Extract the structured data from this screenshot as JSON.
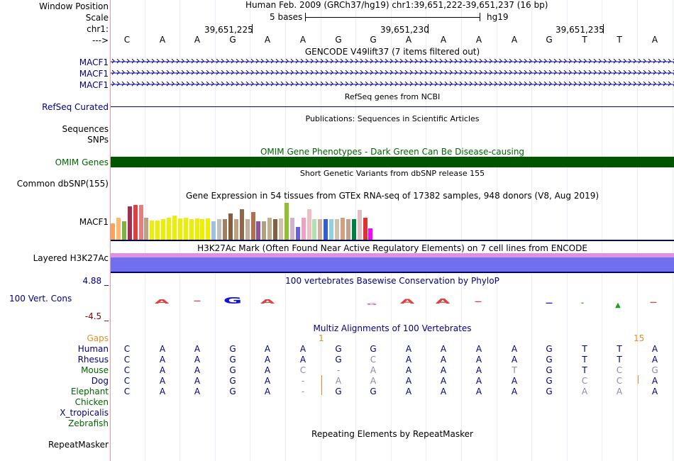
{
  "header": {
    "window_position_label": "Window Position",
    "scale_label": "Scale",
    "chr_label": "chr1:",
    "arrow_label": "--->",
    "position_text": "Human Feb. 2009 (GRCh37/hg19)   chr1:39,651,222-39,651,237 (16 bp)",
    "scale_text": "5 bases",
    "assembly": "hg19",
    "ticks": [
      "39,651,225",
      "39,651,230",
      "39,651,235"
    ]
  },
  "reference_bases": [
    "C",
    "A",
    "A",
    "G",
    "A",
    "A",
    "G",
    "G",
    "A",
    "A",
    "A",
    "A",
    "G",
    "T",
    "T",
    "A"
  ],
  "gencode": {
    "title": "GENCODE V49lift37 (7 items filtered out)",
    "genes": [
      "MACF1",
      "MACF1",
      "MACF1"
    ]
  },
  "refseq": {
    "title": "RefSeq genes from NCBI",
    "label": "RefSeq Curated"
  },
  "publications": {
    "title": "Publications: Sequences in Scientific Articles",
    "labels": [
      "Sequences",
      "SNPs"
    ]
  },
  "omim": {
    "title": "OMIM Gene Phenotypes - Dark Green Can Be Disease-causing",
    "label": "OMIM Genes",
    "color": "#005500"
  },
  "dbsnp": {
    "title": "Short Genetic Variants from dbSNP release 155",
    "label": "Common dbSNP(155)"
  },
  "gtex": {
    "title": "Gene Expression in 54 tissues from GTEx RNA-seq of 17382 samples, 948 donors (V8, Aug 2019)",
    "label": "MACF1",
    "bars": [
      {
        "h": 0.45,
        "c": "#f5a460"
      },
      {
        "h": 0.6,
        "c": "#ffb870"
      },
      {
        "h": 0.5,
        "c": "#80b040"
      },
      {
        "h": 0.9,
        "c": "#a03050"
      },
      {
        "h": 0.95,
        "c": "#e04040"
      },
      {
        "h": 0.95,
        "c": "#e08080"
      },
      {
        "h": 0.6,
        "c": "#c0a080"
      },
      {
        "h": 0.52,
        "c": "#eeee00"
      },
      {
        "h": 0.52,
        "c": "#eeee00"
      },
      {
        "h": 0.55,
        "c": "#eeee00"
      },
      {
        "h": 0.6,
        "c": "#eeee00"
      },
      {
        "h": 0.65,
        "c": "#eeee00"
      },
      {
        "h": 0.58,
        "c": "#eeee00"
      },
      {
        "h": 0.6,
        "c": "#eeee00"
      },
      {
        "h": 0.55,
        "c": "#eeee00"
      },
      {
        "h": 0.58,
        "c": "#eeee00"
      },
      {
        "h": 0.55,
        "c": "#eeee00"
      },
      {
        "h": 0.58,
        "c": "#eeee00"
      },
      {
        "h": 0.5,
        "c": "#a0c0e0"
      },
      {
        "h": 0.55,
        "c": "#c0c0c0"
      },
      {
        "h": 0.55,
        "c": "#a08060"
      },
      {
        "h": 0.72,
        "c": "#806040"
      },
      {
        "h": 0.55,
        "c": "#c0a080"
      },
      {
        "h": 0.82,
        "c": "#8b6a4a"
      },
      {
        "h": 0.55,
        "c": "#c0b0a0"
      },
      {
        "h": 0.75,
        "c": "#b07050"
      },
      {
        "h": 0.5,
        "c": "#9050a0"
      },
      {
        "h": 0.5,
        "c": "#b0a080"
      },
      {
        "h": 0.6,
        "c": "#c0b090"
      },
      {
        "h": 0.55,
        "c": "#806040"
      },
      {
        "h": 0.58,
        "c": "#d0c0b0"
      },
      {
        "h": 1.0,
        "c": "#90c030"
      },
      {
        "h": 0.6,
        "c": "#d0b0d0"
      },
      {
        "h": 0.35,
        "c": "#6060e0"
      },
      {
        "h": 0.6,
        "c": "#f0a0c0"
      },
      {
        "h": 0.82,
        "c": "#f0c0c0"
      },
      {
        "h": 0.55,
        "c": "#b0e0b0"
      },
      {
        "h": 0.55,
        "c": "#d0b0a0"
      },
      {
        "h": 0.55,
        "c": "#3060d0"
      },
      {
        "h": 0.55,
        "c": "#90d0e0"
      },
      {
        "h": 0.55,
        "c": "#d0c0b0"
      },
      {
        "h": 0.6,
        "c": "#d0a080"
      },
      {
        "h": 0.55,
        "c": "#c0a090"
      },
      {
        "h": 0.55,
        "c": "#008040"
      },
      {
        "h": 0.8,
        "c": "#e0c0c0"
      },
      {
        "h": 0.6,
        "c": "#e03030"
      },
      {
        "h": 0.3,
        "c": "#ff00ff"
      }
    ]
  },
  "h3k27ac": {
    "title": "H3K27Ac Mark (Often Found Near Active Regulatory Elements) on 7 cell lines from ENCODE",
    "label": "Layered H3K27Ac"
  },
  "phylop": {
    "title": "100 vertebrates Basewise Conservation by PhyloP",
    "label": "100 Vert. Cons",
    "max_label": "4.88 _",
    "min_label": "-4.5 _"
  },
  "multiz": {
    "title": "Multiz Alignments of 100 Vertebrates",
    "gaps_label": "Gaps",
    "gap_counts": [
      "1",
      "15"
    ],
    "species": [
      {
        "name": "Human",
        "cls": "navy",
        "bases": [
          "C",
          "A",
          "A",
          "G",
          "A",
          "A",
          "G",
          "G",
          "A",
          "A",
          "A",
          "A",
          "G",
          "T",
          "T",
          "A"
        ]
      },
      {
        "name": "Rhesus",
        "cls": "navy",
        "bases": [
          "C",
          "A",
          "A",
          "G",
          "A",
          "A",
          "G",
          "C",
          "A",
          "A",
          "A",
          "A",
          "G",
          "T",
          "T",
          "A"
        ]
      },
      {
        "name": "Mouse",
        "cls": "green",
        "bases": [
          "C",
          "A",
          "A",
          "G",
          "A",
          "C",
          "-",
          "A",
          "A",
          "A",
          "A",
          "T",
          "G",
          "T",
          "C",
          "G"
        ]
      },
      {
        "name": "Dog",
        "cls": "navy",
        "bases": [
          "C",
          "A",
          "A",
          "G",
          "A",
          "-",
          "A",
          "A",
          "A",
          "A",
          "A",
          "A",
          "G",
          "C",
          "C",
          "A"
        ]
      },
      {
        "name": "Elephant",
        "cls": "green",
        "bases": [
          "C",
          "A",
          "A",
          "G",
          "A",
          "-",
          "G",
          "G",
          "A",
          "A",
          "A",
          "A",
          "G",
          "A",
          "A",
          "A"
        ]
      },
      {
        "name": "Chicken",
        "cls": "green",
        "bases": []
      },
      {
        "name": "X_tropicalis",
        "cls": "navy",
        "bases": []
      },
      {
        "name": "Zebrafish",
        "cls": "green",
        "bases": []
      }
    ]
  },
  "repeatmasker": {
    "title": "Repeating Elements by RepeatMasker",
    "label": "RepeatMasker"
  }
}
